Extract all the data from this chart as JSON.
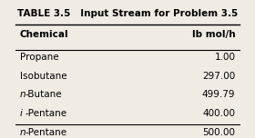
{
  "title": "TABLE 3.5   Input Stream for Problem 3.5",
  "col1_header": "Chemical",
  "col2_header": "lb mol/h",
  "rows": [
    [
      "Propane",
      "1.00"
    ],
    [
      "Isobutane",
      "297.00"
    ],
    [
      "n-Butane",
      "499.79"
    ],
    [
      "i-Pentane",
      "400.00"
    ],
    [
      "n-Pentane",
      "500.00"
    ]
  ],
  "italic_prefix": [
    "n",
    "i"
  ],
  "bg_color": "#f0ece4",
  "text_color": "#000000",
  "title_fontsize": 7.5,
  "header_fontsize": 7.5,
  "row_fontsize": 7.5
}
